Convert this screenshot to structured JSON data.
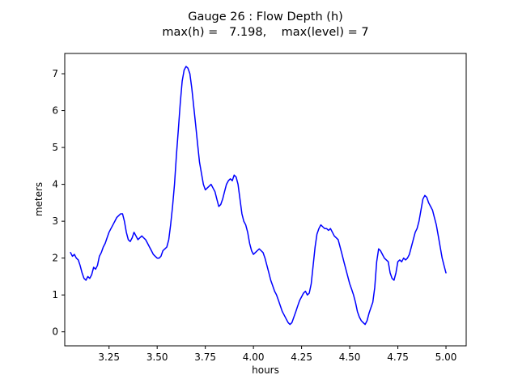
{
  "figure": {
    "title_line1": "Gauge 26 : Flow Depth (h)",
    "title_line2": "max(h) =   7.198,    max(level) = 7",
    "xlabel": "hours",
    "ylabel": "meters"
  },
  "chart_data": {
    "type": "line",
    "title": "Gauge 26 : Flow Depth (h)",
    "subtitle": "max(h) =   7.198,    max(level) = 7",
    "xlabel": "hours",
    "ylabel": "meters",
    "xlim": [
      3.02,
      5.105
    ],
    "ylim": [
      -0.38,
      7.55
    ],
    "xtick_values": [
      3.25,
      3.5,
      3.75,
      4.0,
      4.25,
      4.5,
      4.75,
      5.0
    ],
    "xtick_labels": [
      "3.25",
      "3.50",
      "3.75",
      "4.00",
      "4.25",
      "4.50",
      "4.75",
      "5.00"
    ],
    "ytick_values": [
      0,
      1,
      2,
      3,
      4,
      5,
      6,
      7
    ],
    "ytick_labels": [
      "0",
      "1",
      "2",
      "3",
      "4",
      "5",
      "6",
      "7"
    ],
    "grid": false,
    "legend": "none",
    "line_color": "#0000ff",
    "max_h": 7.198,
    "max_level": 7,
    "series": [
      {
        "name": "flow-depth-h",
        "points": [
          [
            3.05,
            2.15
          ],
          [
            3.06,
            2.05
          ],
          [
            3.07,
            2.1
          ],
          [
            3.08,
            2.0
          ],
          [
            3.09,
            1.95
          ],
          [
            3.1,
            1.8
          ],
          [
            3.11,
            1.6
          ],
          [
            3.12,
            1.45
          ],
          [
            3.13,
            1.4
          ],
          [
            3.14,
            1.5
          ],
          [
            3.15,
            1.45
          ],
          [
            3.16,
            1.55
          ],
          [
            3.17,
            1.75
          ],
          [
            3.18,
            1.7
          ],
          [
            3.19,
            1.8
          ],
          [
            3.2,
            2.05
          ],
          [
            3.21,
            2.15
          ],
          [
            3.22,
            2.3
          ],
          [
            3.23,
            2.4
          ],
          [
            3.24,
            2.55
          ],
          [
            3.25,
            2.7
          ],
          [
            3.26,
            2.8
          ],
          [
            3.27,
            2.9
          ],
          [
            3.28,
            3.0
          ],
          [
            3.29,
            3.1
          ],
          [
            3.3,
            3.15
          ],
          [
            3.31,
            3.2
          ],
          [
            3.32,
            3.2
          ],
          [
            3.33,
            3.0
          ],
          [
            3.34,
            2.7
          ],
          [
            3.35,
            2.5
          ],
          [
            3.36,
            2.45
          ],
          [
            3.37,
            2.55
          ],
          [
            3.38,
            2.7
          ],
          [
            3.39,
            2.6
          ],
          [
            3.4,
            2.5
          ],
          [
            3.41,
            2.55
          ],
          [
            3.42,
            2.6
          ],
          [
            3.43,
            2.55
          ],
          [
            3.44,
            2.5
          ],
          [
            3.45,
            2.4
          ],
          [
            3.46,
            2.3
          ],
          [
            3.47,
            2.2
          ],
          [
            3.48,
            2.1
          ],
          [
            3.49,
            2.05
          ],
          [
            3.5,
            2.0
          ],
          [
            3.51,
            2.0
          ],
          [
            3.52,
            2.05
          ],
          [
            3.53,
            2.2
          ],
          [
            3.54,
            2.25
          ],
          [
            3.55,
            2.3
          ],
          [
            3.56,
            2.5
          ],
          [
            3.57,
            2.9
          ],
          [
            3.58,
            3.4
          ],
          [
            3.59,
            4.0
          ],
          [
            3.6,
            4.8
          ],
          [
            3.61,
            5.5
          ],
          [
            3.62,
            6.2
          ],
          [
            3.63,
            6.8
          ],
          [
            3.64,
            7.1
          ],
          [
            3.65,
            7.198
          ],
          [
            3.66,
            7.15
          ],
          [
            3.67,
            7.0
          ],
          [
            3.68,
            6.6
          ],
          [
            3.69,
            6.1
          ],
          [
            3.7,
            5.6
          ],
          [
            3.71,
            5.1
          ],
          [
            3.72,
            4.6
          ],
          [
            3.73,
            4.3
          ],
          [
            3.74,
            4.0
          ],
          [
            3.75,
            3.85
          ],
          [
            3.76,
            3.9
          ],
          [
            3.77,
            3.95
          ],
          [
            3.78,
            4.0
          ],
          [
            3.79,
            3.9
          ],
          [
            3.8,
            3.8
          ],
          [
            3.81,
            3.6
          ],
          [
            3.82,
            3.4
          ],
          [
            3.83,
            3.45
          ],
          [
            3.84,
            3.6
          ],
          [
            3.85,
            3.8
          ],
          [
            3.86,
            4.0
          ],
          [
            3.87,
            4.1
          ],
          [
            3.88,
            4.15
          ],
          [
            3.89,
            4.1
          ],
          [
            3.9,
            4.25
          ],
          [
            3.91,
            4.2
          ],
          [
            3.92,
            4.0
          ],
          [
            3.93,
            3.6
          ],
          [
            3.94,
            3.2
          ],
          [
            3.95,
            3.0
          ],
          [
            3.96,
            2.9
          ],
          [
            3.97,
            2.7
          ],
          [
            3.98,
            2.4
          ],
          [
            3.99,
            2.2
          ],
          [
            4.0,
            2.1
          ],
          [
            4.01,
            2.15
          ],
          [
            4.02,
            2.2
          ],
          [
            4.03,
            2.25
          ],
          [
            4.04,
            2.2
          ],
          [
            4.05,
            2.15
          ],
          [
            4.06,
            2.0
          ],
          [
            4.07,
            1.8
          ],
          [
            4.08,
            1.6
          ],
          [
            4.09,
            1.4
          ],
          [
            4.1,
            1.25
          ],
          [
            4.11,
            1.1
          ],
          [
            4.12,
            1.0
          ],
          [
            4.13,
            0.85
          ],
          [
            4.14,
            0.7
          ],
          [
            4.15,
            0.55
          ],
          [
            4.16,
            0.45
          ],
          [
            4.17,
            0.35
          ],
          [
            4.18,
            0.25
          ],
          [
            4.19,
            0.2
          ],
          [
            4.2,
            0.25
          ],
          [
            4.21,
            0.4
          ],
          [
            4.22,
            0.55
          ],
          [
            4.23,
            0.7
          ],
          [
            4.24,
            0.85
          ],
          [
            4.25,
            0.95
          ],
          [
            4.26,
            1.05
          ],
          [
            4.27,
            1.1
          ],
          [
            4.28,
            1.0
          ],
          [
            4.29,
            1.05
          ],
          [
            4.3,
            1.3
          ],
          [
            4.31,
            1.8
          ],
          [
            4.32,
            2.3
          ],
          [
            4.33,
            2.65
          ],
          [
            4.34,
            2.8
          ],
          [
            4.35,
            2.9
          ],
          [
            4.36,
            2.85
          ],
          [
            4.37,
            2.8
          ],
          [
            4.38,
            2.8
          ],
          [
            4.39,
            2.75
          ],
          [
            4.4,
            2.8
          ],
          [
            4.41,
            2.7
          ],
          [
            4.42,
            2.6
          ],
          [
            4.43,
            2.55
          ],
          [
            4.44,
            2.5
          ],
          [
            4.45,
            2.3
          ],
          [
            4.46,
            2.1
          ],
          [
            4.47,
            1.9
          ],
          [
            4.48,
            1.7
          ],
          [
            4.49,
            1.5
          ],
          [
            4.5,
            1.3
          ],
          [
            4.51,
            1.15
          ],
          [
            4.52,
            1.0
          ],
          [
            4.53,
            0.8
          ],
          [
            4.54,
            0.55
          ],
          [
            4.55,
            0.4
          ],
          [
            4.56,
            0.3
          ],
          [
            4.57,
            0.25
          ],
          [
            4.58,
            0.2
          ],
          [
            4.59,
            0.3
          ],
          [
            4.6,
            0.5
          ],
          [
            4.61,
            0.65
          ],
          [
            4.62,
            0.8
          ],
          [
            4.63,
            1.2
          ],
          [
            4.64,
            1.9
          ],
          [
            4.65,
            2.25
          ],
          [
            4.66,
            2.2
          ],
          [
            4.67,
            2.1
          ],
          [
            4.68,
            2.0
          ],
          [
            4.69,
            1.95
          ],
          [
            4.7,
            1.9
          ],
          [
            4.71,
            1.6
          ],
          [
            4.72,
            1.45
          ],
          [
            4.73,
            1.4
          ],
          [
            4.74,
            1.6
          ],
          [
            4.75,
            1.9
          ],
          [
            4.76,
            1.95
          ],
          [
            4.77,
            1.9
          ],
          [
            4.78,
            2.0
          ],
          [
            4.79,
            1.95
          ],
          [
            4.8,
            2.0
          ],
          [
            4.81,
            2.1
          ],
          [
            4.82,
            2.3
          ],
          [
            4.83,
            2.5
          ],
          [
            4.84,
            2.7
          ],
          [
            4.85,
            2.8
          ],
          [
            4.86,
            3.0
          ],
          [
            4.87,
            3.3
          ],
          [
            4.88,
            3.6
          ],
          [
            4.89,
            3.7
          ],
          [
            4.9,
            3.65
          ],
          [
            4.91,
            3.5
          ],
          [
            4.92,
            3.4
          ],
          [
            4.93,
            3.3
          ],
          [
            4.94,
            3.1
          ],
          [
            4.95,
            2.9
          ],
          [
            4.96,
            2.6
          ],
          [
            4.97,
            2.3
          ],
          [
            4.98,
            2.0
          ],
          [
            4.99,
            1.8
          ],
          [
            5.0,
            1.6
          ]
        ]
      }
    ]
  }
}
